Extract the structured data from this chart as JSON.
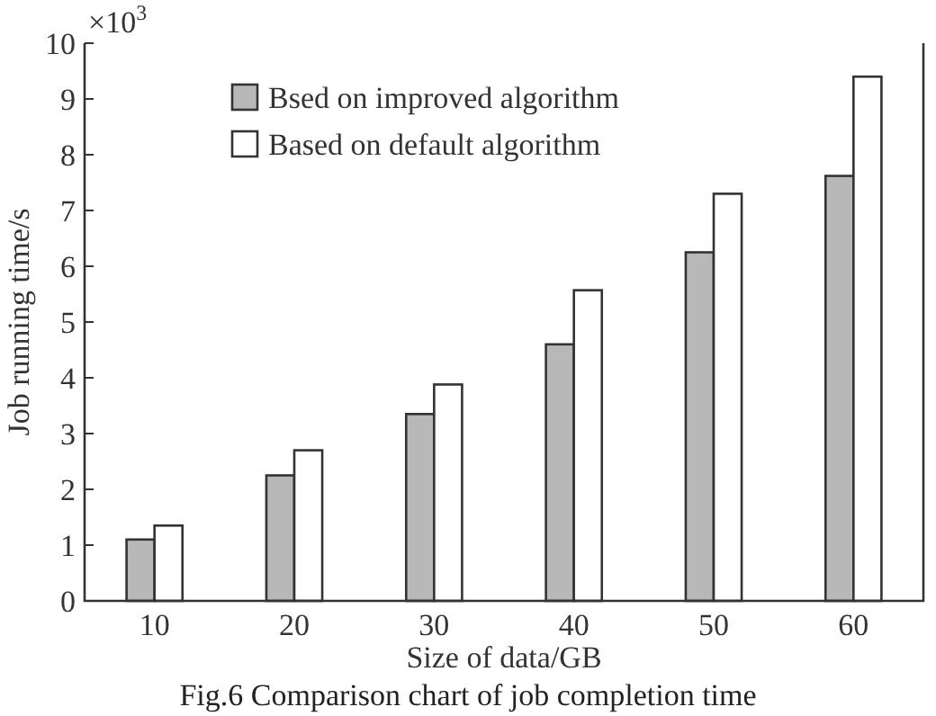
{
  "chart_data": {
    "type": "bar",
    "xlabel": "Size of data/GB",
    "ylabel": "Job running time/s",
    "categories": [
      "10",
      "20",
      "30",
      "40",
      "50",
      "60"
    ],
    "series": [
      {
        "name": "Bsed on improved algorithm",
        "color": "#b8b8b8",
        "values": [
          1.1,
          2.25,
          3.35,
          4.6,
          6.25,
          7.62
        ]
      },
      {
        "name": "Based on default algorithm",
        "color": "#ffffff",
        "values": [
          1.35,
          2.7,
          3.88,
          5.57,
          7.3,
          9.4
        ]
      }
    ],
    "ylim": [
      0,
      10
    ],
    "yticks": [
      0,
      1,
      2,
      3,
      4,
      5,
      6,
      7,
      8,
      9,
      10
    ],
    "legend": "top left",
    "grid": false,
    "annotations": [
      "×10$^{3}$",
      "Fig.6  Comparison chart of job completion time"
    ]
  }
}
